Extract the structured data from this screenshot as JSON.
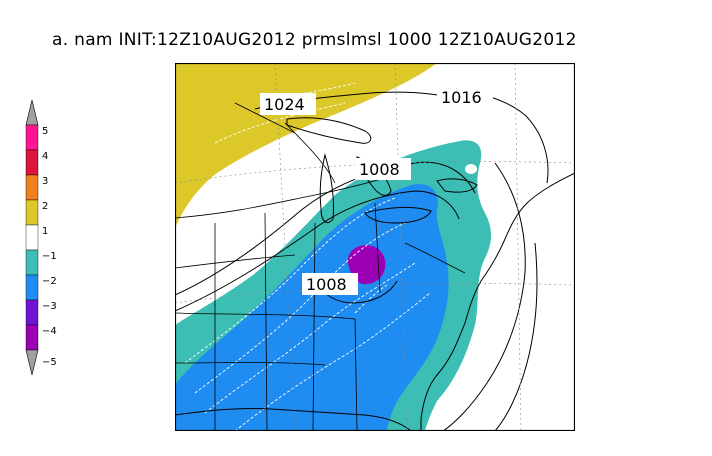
{
  "title": "a.   nam INIT:12Z10AUG2012 prmslmsl 1000 12Z10AUG2012",
  "colorbar": {
    "labels": [
      "5",
      "4",
      "3",
      "2",
      "1",
      "−1",
      "−2",
      "−3",
      "−4",
      "−5"
    ],
    "colors": [
      "#ff1493",
      "#dc143c",
      "#f07f1e",
      "#dcc828",
      "#ffffff",
      "#3cbeb4",
      "#1e8cf0",
      "#6e14d2",
      "#9c00b4",
      "#9c00b4"
    ]
  },
  "map": {
    "region": "eastern-united-states",
    "contour_labels": [
      {
        "text": "1024"
      },
      {
        "text": "1016"
      },
      {
        "text": "1008"
      },
      {
        "text": "1008"
      }
    ],
    "fill_colors": {
      "positive_anomaly": "#dcc828",
      "neutral": "#ffffff",
      "neg1": "#3cbeb4",
      "neg2": "#1e8cf0",
      "neg4": "#9c00b4"
    }
  }
}
